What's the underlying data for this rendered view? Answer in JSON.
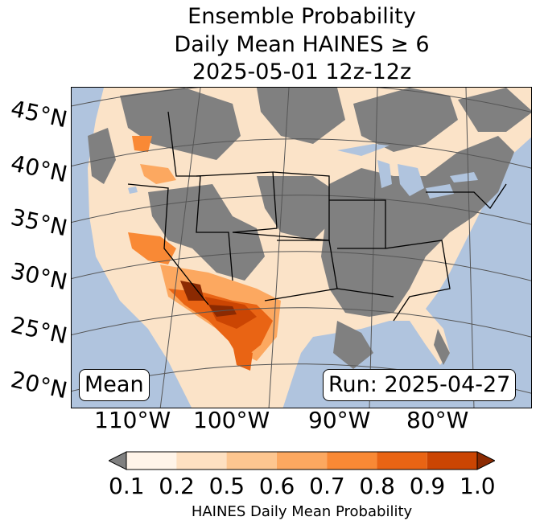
{
  "title": {
    "line1": "Ensemble Probability",
    "line2": "Daily Mean HAINES ≥ 6",
    "line3": "2025-05-01 12z-12z"
  },
  "map": {
    "lat_labels": [
      "45°N",
      "40°N",
      "35°N",
      "30°N",
      "25°N",
      "20°N"
    ],
    "lon_labels": [
      "110°W",
      "100°W",
      "90°W",
      "80°W"
    ],
    "stat_label": "Mean",
    "run_label": "Run: 2025-04-27",
    "ocean_color": "#b0c4de",
    "nodata_color": "#808080"
  },
  "colorbar": {
    "ticks": [
      "0.1",
      "0.2",
      "0.5",
      "0.6",
      "0.7",
      "0.8",
      "0.9",
      "1.0"
    ],
    "colors": [
      "#fff4e9",
      "#fee0c1",
      "#fdc690",
      "#fca860",
      "#f98935",
      "#e96414",
      "#cb4503"
    ],
    "under_color": "#808080",
    "over_color": "#8b2a02",
    "label": "HAINES Daily Mean Probability"
  }
}
